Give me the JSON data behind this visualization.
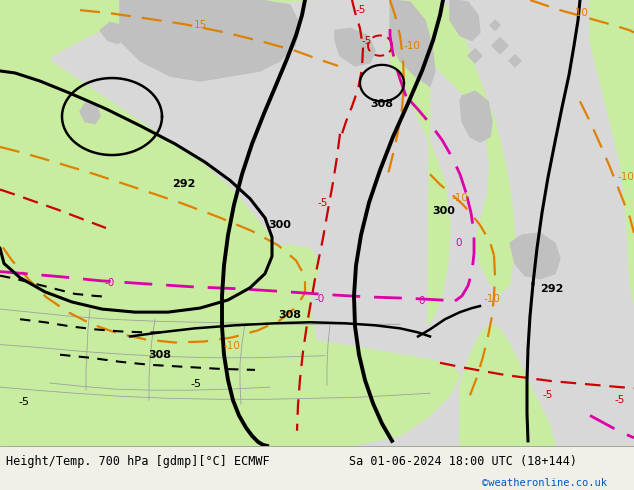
{
  "title_left": "Height/Temp. 700 hPa [gdmp][°C] ECMWF",
  "title_right": "Sa 01-06-2024 18:00 UTC (18+144)",
  "credit": "©weatheronline.co.uk",
  "bg_color": "#f0f0e8",
  "land_green": "#c8eda0",
  "land_gray": "#c0c0c0",
  "sea_color": "#d8d8d8",
  "fig_width": 6.34,
  "fig_height": 4.9,
  "dpi": 100
}
